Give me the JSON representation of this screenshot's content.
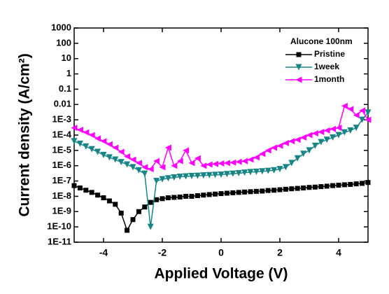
{
  "chart_data": {
    "type": "line",
    "xlabel": "Applied Voltage (V)",
    "ylabel": "Current density (A/cm²)",
    "legend_title": "Alucone 100nm",
    "legend": "upper right",
    "yscale": "log",
    "xlim": [
      -5,
      5
    ],
    "ylim": [
      1e-11,
      1000
    ],
    "xticks": [
      -4,
      -2,
      0,
      2,
      4
    ],
    "yticks": [
      1000,
      100,
      10,
      1,
      0.1,
      0.01,
      {
        "value": 0.001,
        "label": "1E-3"
      },
      {
        "value": 0.0001,
        "label": "1E-4"
      },
      {
        "value": 1e-05,
        "label": "1E-5"
      },
      {
        "value": 1e-06,
        "label": "1E-6"
      },
      {
        "value": 1e-07,
        "label": "1E-7"
      },
      {
        "value": 1e-08,
        "label": "1E-8"
      },
      {
        "value": 1e-09,
        "label": "1E-9"
      },
      {
        "value": 1e-10,
        "label": "1E-10"
      },
      {
        "value": 1e-11,
        "label": "1E-11"
      }
    ],
    "x": [
      -5,
      -4.8,
      -4.6,
      -4.4,
      -4.2,
      -4,
      -3.8,
      -3.6,
      -3.4,
      -3.2,
      -3,
      -2.8,
      -2.6,
      -2.4,
      -2.2,
      -2,
      -1.8,
      -1.6,
      -1.4,
      -1.2,
      -1,
      -0.8,
      -0.6,
      -0.4,
      -0.2,
      0,
      0.2,
      0.4,
      0.6,
      0.8,
      1,
      1.2,
      1.4,
      1.6,
      1.8,
      2,
      2.2,
      2.4,
      2.6,
      2.8,
      3,
      3.2,
      3.4,
      3.6,
      3.8,
      4,
      4.2,
      4.4,
      4.6,
      4.8,
      5
    ],
    "series": [
      {
        "name": "Pristine",
        "color": "#000000",
        "marker": "square",
        "values": [
          5e-08,
          3.5e-08,
          2.5e-08,
          1.8e-08,
          1.2e-08,
          8e-09,
          5e-09,
          3e-09,
          8e-10,
          6e-11,
          3e-10,
          1e-09,
          2e-09,
          4e-09,
          6e-09,
          7e-09,
          8e-09,
          8.5e-09,
          9e-09,
          1e-08,
          1e-08,
          1.1e-08,
          1.2e-08,
          1.3e-08,
          1.4e-08,
          1.5e-08,
          1.6e-08,
          1.7e-08,
          1.8e-08,
          1.9e-08,
          2e-08,
          2.1e-08,
          2.2e-08,
          2.4e-08,
          2.5e-08,
          2.7e-08,
          2.9e-08,
          3.1e-08,
          3.3e-08,
          3.5e-08,
          3.8e-08,
          4e-08,
          4.3e-08,
          4.6e-08,
          5e-08,
          5.3e-08,
          5.7e-08,
          6e-08,
          6.5e-08,
          7e-08,
          8e-08
        ]
      },
      {
        "name": "1week",
        "color": "#178585",
        "marker": "triangle-down",
        "values": [
          4e-05,
          2.7e-05,
          1.8e-05,
          1.2e-05,
          8e-06,
          5e-06,
          3.5e-06,
          2.5e-06,
          1.7e-06,
          1.2e-06,
          8e-07,
          5e-07,
          3e-07,
          1e-10,
          1e-07,
          1.3e-07,
          1.5e-07,
          1.7e-07,
          1.9e-07,
          2e-07,
          2.1e-07,
          2.2e-07,
          2.3e-07,
          2.4e-07,
          2.5e-07,
          2.6e-07,
          2.8e-07,
          3e-07,
          3.2e-07,
          3.5e-07,
          3.8e-07,
          4e-07,
          4.3e-07,
          4.6e-07,
          5e-07,
          6e-07,
          8e-07,
          1.5e-06,
          3e-06,
          6e-06,
          1e-05,
          2e-05,
          3.5e-05,
          5e-05,
          7e-05,
          0.0001,
          0.00015,
          0.0002,
          0.0003,
          0.001,
          0.003
        ]
      },
      {
        "name": "1month",
        "color": "#ff00ff",
        "marker": "triangle-left",
        "values": [
          0.0003,
          0.00022,
          0.00015,
          0.0001,
          6e-05,
          4e-05,
          2.5e-05,
          1.5e-05,
          8e-06,
          4e-06,
          2.5e-06,
          1.5e-06,
          8e-07,
          6e-07,
          2e-06,
          8e-07,
          1.5e-05,
          1e-06,
          2e-06,
          1e-05,
          1.5e-06,
          3e-06,
          1e-06,
          1.2e-06,
          1.3e-06,
          1.4e-06,
          1.5e-06,
          1.6e-06,
          1.8e-06,
          2e-06,
          2.5e-06,
          3.5e-06,
          6e-06,
          1e-05,
          1.5e-05,
          2e-05,
          3e-05,
          4e-05,
          5e-05,
          7e-05,
          0.0001,
          0.00013,
          0.00016,
          0.0002,
          0.00025,
          0.0003,
          0.008,
          0.005,
          0.002,
          0.004,
          0.001
        ]
      }
    ]
  }
}
